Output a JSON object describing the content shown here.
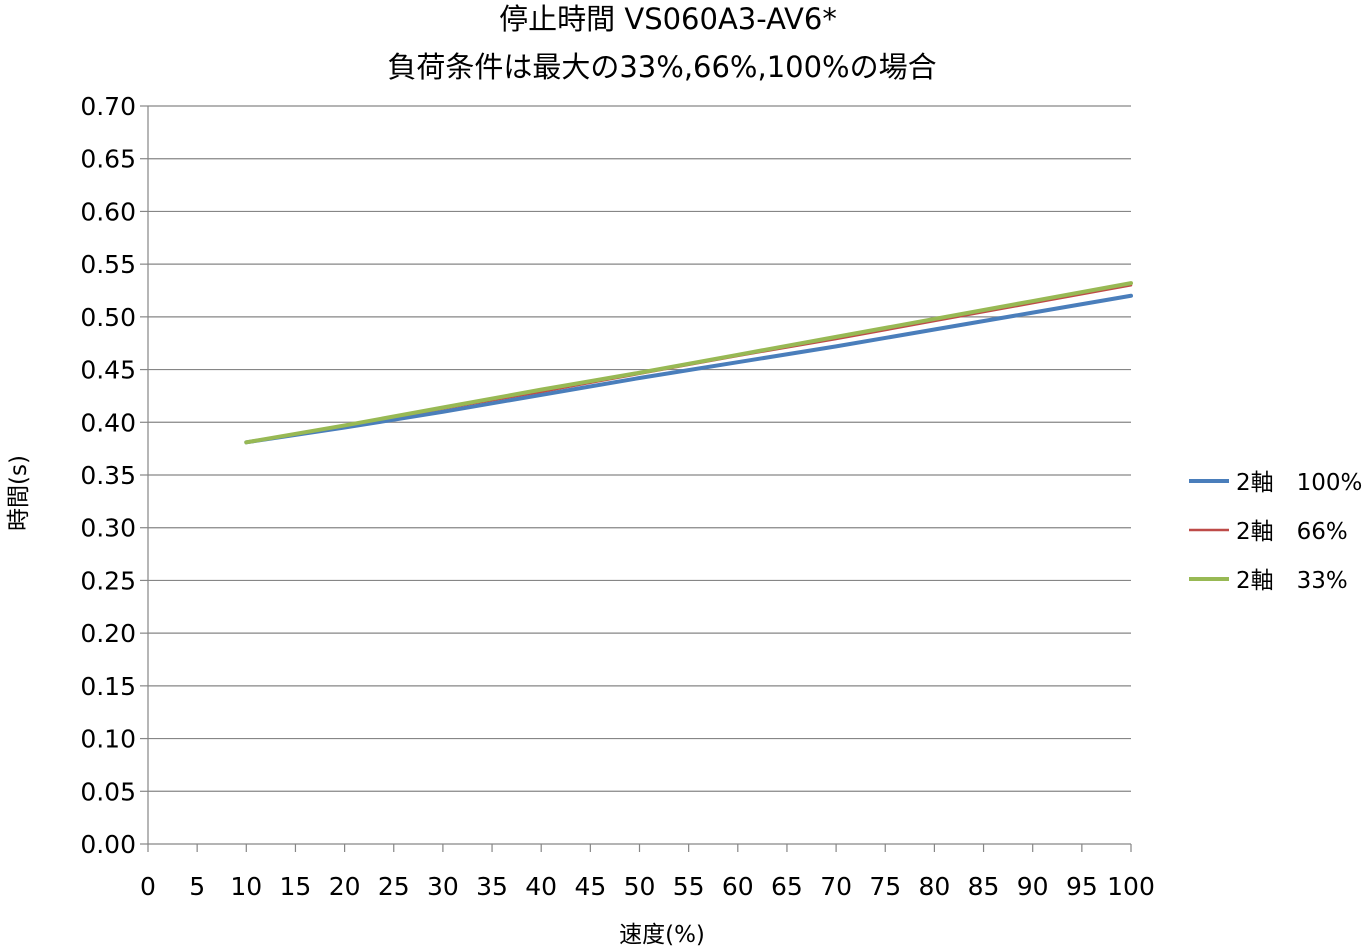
{
  "chart_data": {
    "type": "line",
    "title": "停止時間 VS060A3-AV6*",
    "subtitle": "負荷条件は最大の33%,66%,100%の場合",
    "xlabel": "速度(%)",
    "ylabel": "時間(s)",
    "xlim": [
      0,
      100
    ],
    "ylim": [
      0,
      0.7
    ],
    "x_ticks": [
      "0",
      "5",
      "10",
      "15",
      "20",
      "25",
      "30",
      "35",
      "40",
      "45",
      "50",
      "55",
      "60",
      "65",
      "70",
      "75",
      "80",
      "85",
      "90",
      "95",
      "100"
    ],
    "y_ticks": [
      "0.00",
      "0.05",
      "0.10",
      "0.15",
      "0.20",
      "0.25",
      "0.30",
      "0.35",
      "0.40",
      "0.45",
      "0.50",
      "0.55",
      "0.60",
      "0.65",
      "0.70"
    ],
    "grid": "horizontal",
    "legend_position": "right",
    "x": [
      10,
      20,
      30,
      40,
      50,
      60,
      70,
      80,
      90,
      100
    ],
    "series": [
      {
        "name": "2軸　100%",
        "color": "#4a7ebb",
        "values": [
          0.381,
          0.395,
          0.41,
          0.426,
          0.442,
          0.457,
          0.472,
          0.488,
          0.504,
          0.52
        ]
      },
      {
        "name": "2軸　66%",
        "color": "#be4b48",
        "values": [
          0.381,
          0.397,
          0.413,
          0.429,
          0.446,
          0.463,
          0.479,
          0.496,
          0.513,
          0.53
        ]
      },
      {
        "name": "2軸　33%",
        "color": "#98b954",
        "values": [
          0.381,
          0.397,
          0.414,
          0.431,
          0.447,
          0.464,
          0.481,
          0.498,
          0.515,
          0.532
        ]
      }
    ]
  }
}
